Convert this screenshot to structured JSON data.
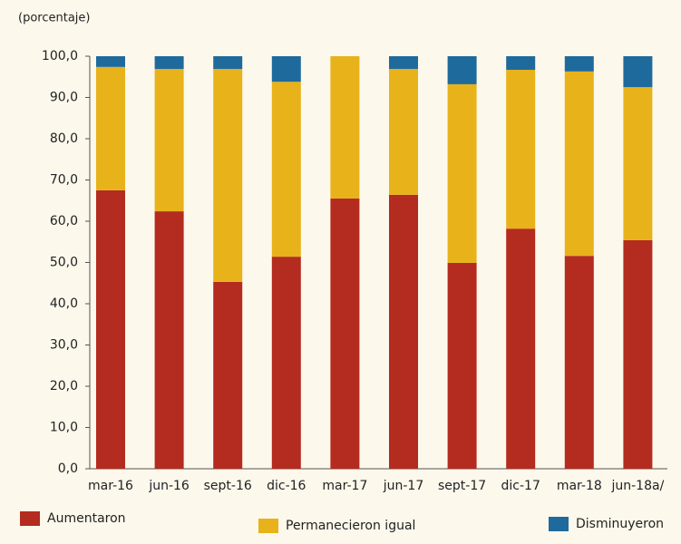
{
  "chart_data": {
    "type": "stacked_bar",
    "y_axis_label": "(porcentaje)",
    "categories": [
      "mar-16",
      "jun-16",
      "sept-16",
      "dic-16",
      "mar-17",
      "jun-17",
      "sept-17",
      "dic-17",
      "mar-18",
      "jun-18a/"
    ],
    "series": [
      {
        "name": "Aumentaron",
        "color": "#b42b1f",
        "values": [
          67.5,
          62.4,
          45.3,
          51.4,
          65.5,
          66.4,
          49.9,
          58.2,
          51.6,
          55.4
        ]
      },
      {
        "name": "Permanecieron igual",
        "color": "#e8b21b",
        "values": [
          29.9,
          34.5,
          51.6,
          42.4,
          34.5,
          30.5,
          43.3,
          38.5,
          44.7,
          37.1
        ]
      },
      {
        "name": "Disminuyeron",
        "color": "#1f6a9c",
        "values": [
          2.6,
          3.1,
          3.1,
          6.2,
          0,
          3.1,
          6.8,
          3.3,
          3.7,
          7.5
        ]
      }
    ],
    "ylim": [
      0,
      100
    ],
    "yticks": [
      {
        "value": 0,
        "label": "0,0"
      },
      {
        "value": 10,
        "label": "10,0"
      },
      {
        "value": 20,
        "label": "20,0"
      },
      {
        "value": 30,
        "label": "30,0"
      },
      {
        "value": 40,
        "label": "40,0"
      },
      {
        "value": 50,
        "label": "50,0"
      },
      {
        "value": 60,
        "label": "60,0"
      },
      {
        "value": 70,
        "label": "70,0"
      },
      {
        "value": 80,
        "label": "80,0"
      },
      {
        "value": 90,
        "label": "90,0"
      },
      {
        "value": 100,
        "label": "100,0"
      }
    ],
    "legend": "bottom"
  }
}
